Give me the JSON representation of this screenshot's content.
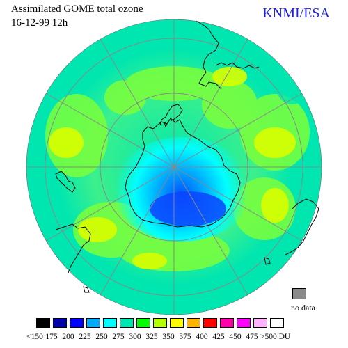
{
  "header": {
    "title": "Assimilated GOME total ozone",
    "date": "16-12-99 12h",
    "brand": "KNMI/ESA",
    "brand_color": "#1f1fe6"
  },
  "nodata": {
    "label": "no data",
    "color": "#8a8a8a"
  },
  "legend": {
    "items": [
      {
        "label": "<150",
        "color": "#000000"
      },
      {
        "label": "175",
        "color": "#0000a8"
      },
      {
        "label": "200",
        "color": "#0000ff"
      },
      {
        "label": "225",
        "color": "#00aaff"
      },
      {
        "label": "250",
        "color": "#00ffff"
      },
      {
        "label": "275",
        "color": "#00e6b0"
      },
      {
        "label": "300",
        "color": "#00ff00"
      },
      {
        "label": "325",
        "color": "#b4ff00"
      },
      {
        "label": "350",
        "color": "#ffff00"
      },
      {
        "label": "375",
        "color": "#ffb400"
      },
      {
        "label": "400",
        "color": "#ff0000"
      },
      {
        "label": "425",
        "color": "#ff00aa"
      },
      {
        "label": "450",
        "color": "#ff00ff"
      },
      {
        "label": "475",
        "color": "#ffb4ff"
      },
      {
        "label": ">500 DU",
        "color": "#ffffff"
      }
    ]
  },
  "map": {
    "projection": "polar stereographic, south pole centered",
    "grid": true
  }
}
